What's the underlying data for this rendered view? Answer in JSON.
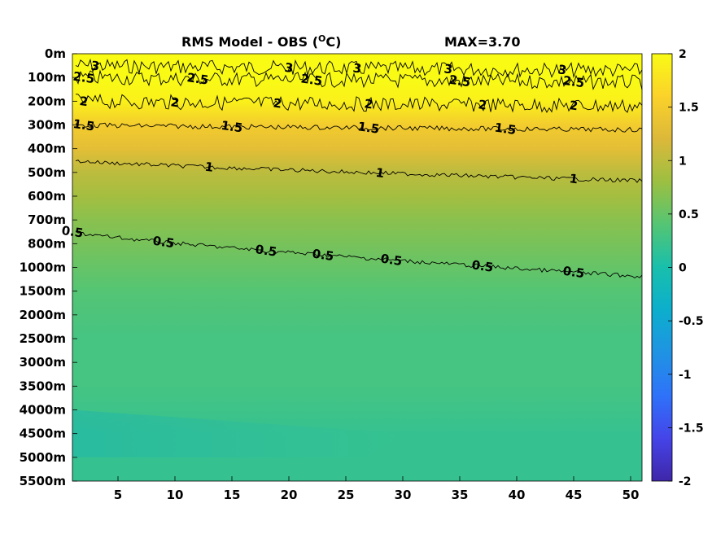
{
  "chart_data": {
    "type": "heatmap",
    "title": "RMS Model - OBS (",
    "title_unit": "C)",
    "title_degree": "O",
    "max_label": "MAX=3.70",
    "x_ticks": [
      "5",
      "10",
      "15",
      "20",
      "25",
      "30",
      "35",
      "40",
      "45",
      "50"
    ],
    "x_tick_values": [
      5,
      10,
      15,
      20,
      25,
      30,
      35,
      40,
      45,
      50
    ],
    "xlim": [
      1,
      51
    ],
    "y_ticks": [
      "0m",
      "100m",
      "200m",
      "300m",
      "400m",
      "500m",
      "600m",
      "700m",
      "800m",
      "1000m",
      "1500m",
      "2000m",
      "2500m",
      "3000m",
      "3500m",
      "4000m",
      "4500m",
      "5000m",
      "5500m"
    ],
    "colorbar": {
      "ticks": [
        "2",
        "1.5",
        "1",
        "0.5",
        "0",
        "-0.5",
        "-1",
        "-1.5",
        "-2"
      ],
      "tick_values": [
        2,
        1.5,
        1,
        0.5,
        0,
        -0.5,
        -1,
        -1.5,
        -2
      ],
      "range": [
        -2,
        2
      ],
      "colormap": "parula"
    },
    "depth_profile": [
      {
        "depth": "0m",
        "value": 2.0
      },
      {
        "depth": "100m",
        "value": 2.0
      },
      {
        "depth": "200m",
        "value": 1.9
      },
      {
        "depth": "300m",
        "value": 1.5
      },
      {
        "depth": "400m",
        "value": 1.3
      },
      {
        "depth": "500m",
        "value": 1.0
      },
      {
        "depth": "600m",
        "value": 0.85
      },
      {
        "depth": "700m",
        "value": 0.7
      },
      {
        "depth": "800m",
        "value": 0.6
      },
      {
        "depth": "1000m",
        "value": 0.5
      },
      {
        "depth": "1500m",
        "value": 0.4
      },
      {
        "depth": "2000m",
        "value": 0.35
      },
      {
        "depth": "2500m",
        "value": 0.3
      },
      {
        "depth": "3000m",
        "value": 0.3
      },
      {
        "depth": "3500m",
        "value": 0.3
      },
      {
        "depth": "4000m",
        "value": 0.25
      },
      {
        "depth": "4500m",
        "value": 0.2
      },
      {
        "depth": "5000m",
        "value": 0.2
      },
      {
        "depth": "5500m",
        "value": 0.2
      }
    ],
    "contours": [
      {
        "level": 3,
        "label": "3",
        "depth": "50m",
        "labels_at_x": [
          3,
          20,
          26,
          34,
          44
        ]
      },
      {
        "level": 2.5,
        "label": "2.5",
        "depth": "100m",
        "labels_at_x": [
          2,
          12,
          22,
          35,
          45
        ]
      },
      {
        "level": 2,
        "label": "2",
        "depth": "200m",
        "labels_at_x": [
          2,
          10,
          19,
          27,
          37,
          45
        ]
      },
      {
        "level": 1.5,
        "label": "1.5",
        "depth": "300m",
        "labels_at_x": [
          2,
          15,
          27,
          39
        ]
      },
      {
        "level": 1,
        "label": "1",
        "depth": "450m",
        "labels_at_x": [
          13,
          28,
          45
        ]
      },
      {
        "level": 0.5,
        "label": "0.5",
        "depth": "750m",
        "labels_at_x": [
          1,
          9,
          18,
          23,
          29,
          37,
          45
        ]
      }
    ]
  }
}
